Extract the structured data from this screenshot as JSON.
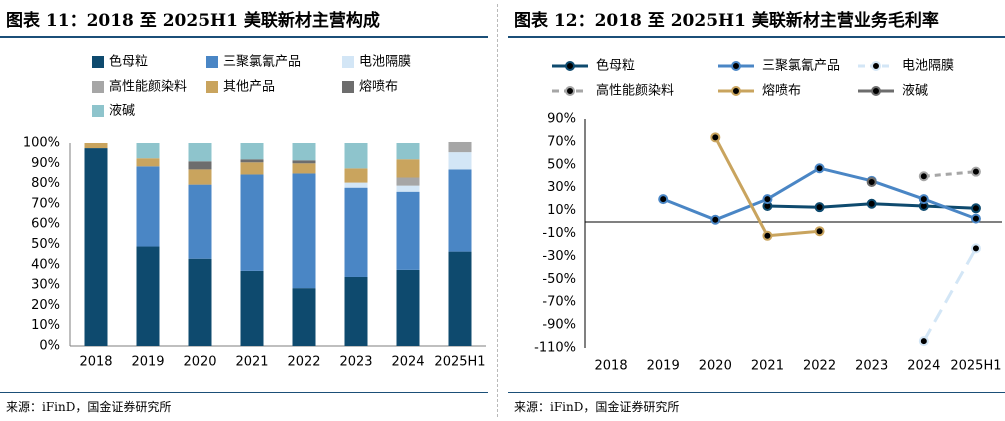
{
  "left": {
    "title": "图表 11：2018 至 2025H1 美联新材主营构成",
    "source": "来源：iFinD，国金证券研究所",
    "chart_data": {
      "type": "bar",
      "stacked": true,
      "title": "图表 11：2018 至 2025H1 美联新材主营构成",
      "categories": [
        "2018",
        "2019",
        "2020",
        "2021",
        "2022",
        "2023",
        "2024",
        "2025H1"
      ],
      "ylim": [
        0,
        100
      ],
      "yticks": [
        "0%",
        "10%",
        "20%",
        "30%",
        "40%",
        "50%",
        "60%",
        "70%",
        "80%",
        "90%",
        "100%"
      ],
      "legend_position": "top",
      "series": [
        {
          "name": "色母粒",
          "color": "#0e4a6e",
          "values": [
            97.5,
            49,
            43,
            37,
            28.5,
            34,
            37.5,
            46.5
          ]
        },
        {
          "name": "三聚氯氰产品",
          "color": "#4a86c5",
          "values": [
            0,
            39.5,
            36.5,
            47.5,
            56.5,
            44,
            38.5,
            40.5
          ]
        },
        {
          "name": "电池隔膜",
          "color": "#d3e6f6",
          "values": [
            0,
            0,
            0,
            0,
            0,
            2.5,
            3,
            8.5
          ]
        },
        {
          "name": "高性能颜染料",
          "color": "#a6a6a6",
          "values": [
            0,
            0,
            0,
            0,
            0,
            0,
            4,
            5
          ]
        },
        {
          "name": "其他产品",
          "color": "#c9a45e",
          "values": [
            2.5,
            4,
            7.5,
            6,
            5,
            7,
            9,
            0
          ]
        },
        {
          "name": "熔喷布",
          "color": "#6d6d6d",
          "values": [
            0,
            0,
            4,
            1.5,
            1.5,
            0,
            0,
            0
          ]
        },
        {
          "name": "液碱",
          "color": "#8ec4cc",
          "values": [
            0,
            7.5,
            9,
            8,
            8.5,
            12.5,
            8,
            0
          ]
        }
      ]
    }
  },
  "right": {
    "title": "图表 12：2018 至 2025H1 美联新材主营业务毛利率",
    "source": "来源：iFinD，国金证券研究所",
    "chart_data": {
      "type": "line",
      "title": "图表 12：2018 至 2025H1 美联新材主营业务毛利率",
      "categories": [
        "2018",
        "2019",
        "2020",
        "2021",
        "2022",
        "2023",
        "2024",
        "2025H1"
      ],
      "ylim": [
        -110,
        90
      ],
      "yticks": [
        "90%",
        "70%",
        "50%",
        "30%",
        "10%",
        "-10%",
        "-30%",
        "-50%",
        "-70%",
        "-90%",
        "-110%"
      ],
      "legend_position": "top",
      "series": [
        {
          "name": "色母粒",
          "color": "#0e4a6e",
          "dash": "",
          "values": [
            null,
            null,
            null,
            14,
            13,
            16,
            14,
            12
          ]
        },
        {
          "name": "三聚氯氰产品",
          "color": "#4a86c5",
          "dash": "",
          "values": [
            null,
            20,
            2,
            20,
            47,
            36,
            20,
            3
          ]
        },
        {
          "name": "电池隔膜",
          "color": "#d3e6f6",
          "dash": "14,8",
          "values": [
            null,
            null,
            null,
            null,
            null,
            null,
            -104,
            -23
          ]
        },
        {
          "name": "高性能颜染料",
          "color": "#a6a6a6",
          "dash": "6,5",
          "values": [
            null,
            null,
            null,
            null,
            null,
            null,
            40,
            44
          ]
        },
        {
          "name": "熔喷布",
          "color": "#c9a45e",
          "dash": "",
          "values": [
            null,
            null,
            74,
            -12,
            -8,
            null,
            null,
            null
          ]
        },
        {
          "name": "液碱",
          "color": "#6d6d6d",
          "dash": "",
          "values": [
            null,
            null,
            null,
            null,
            null,
            35,
            null,
            null
          ]
        }
      ]
    }
  }
}
